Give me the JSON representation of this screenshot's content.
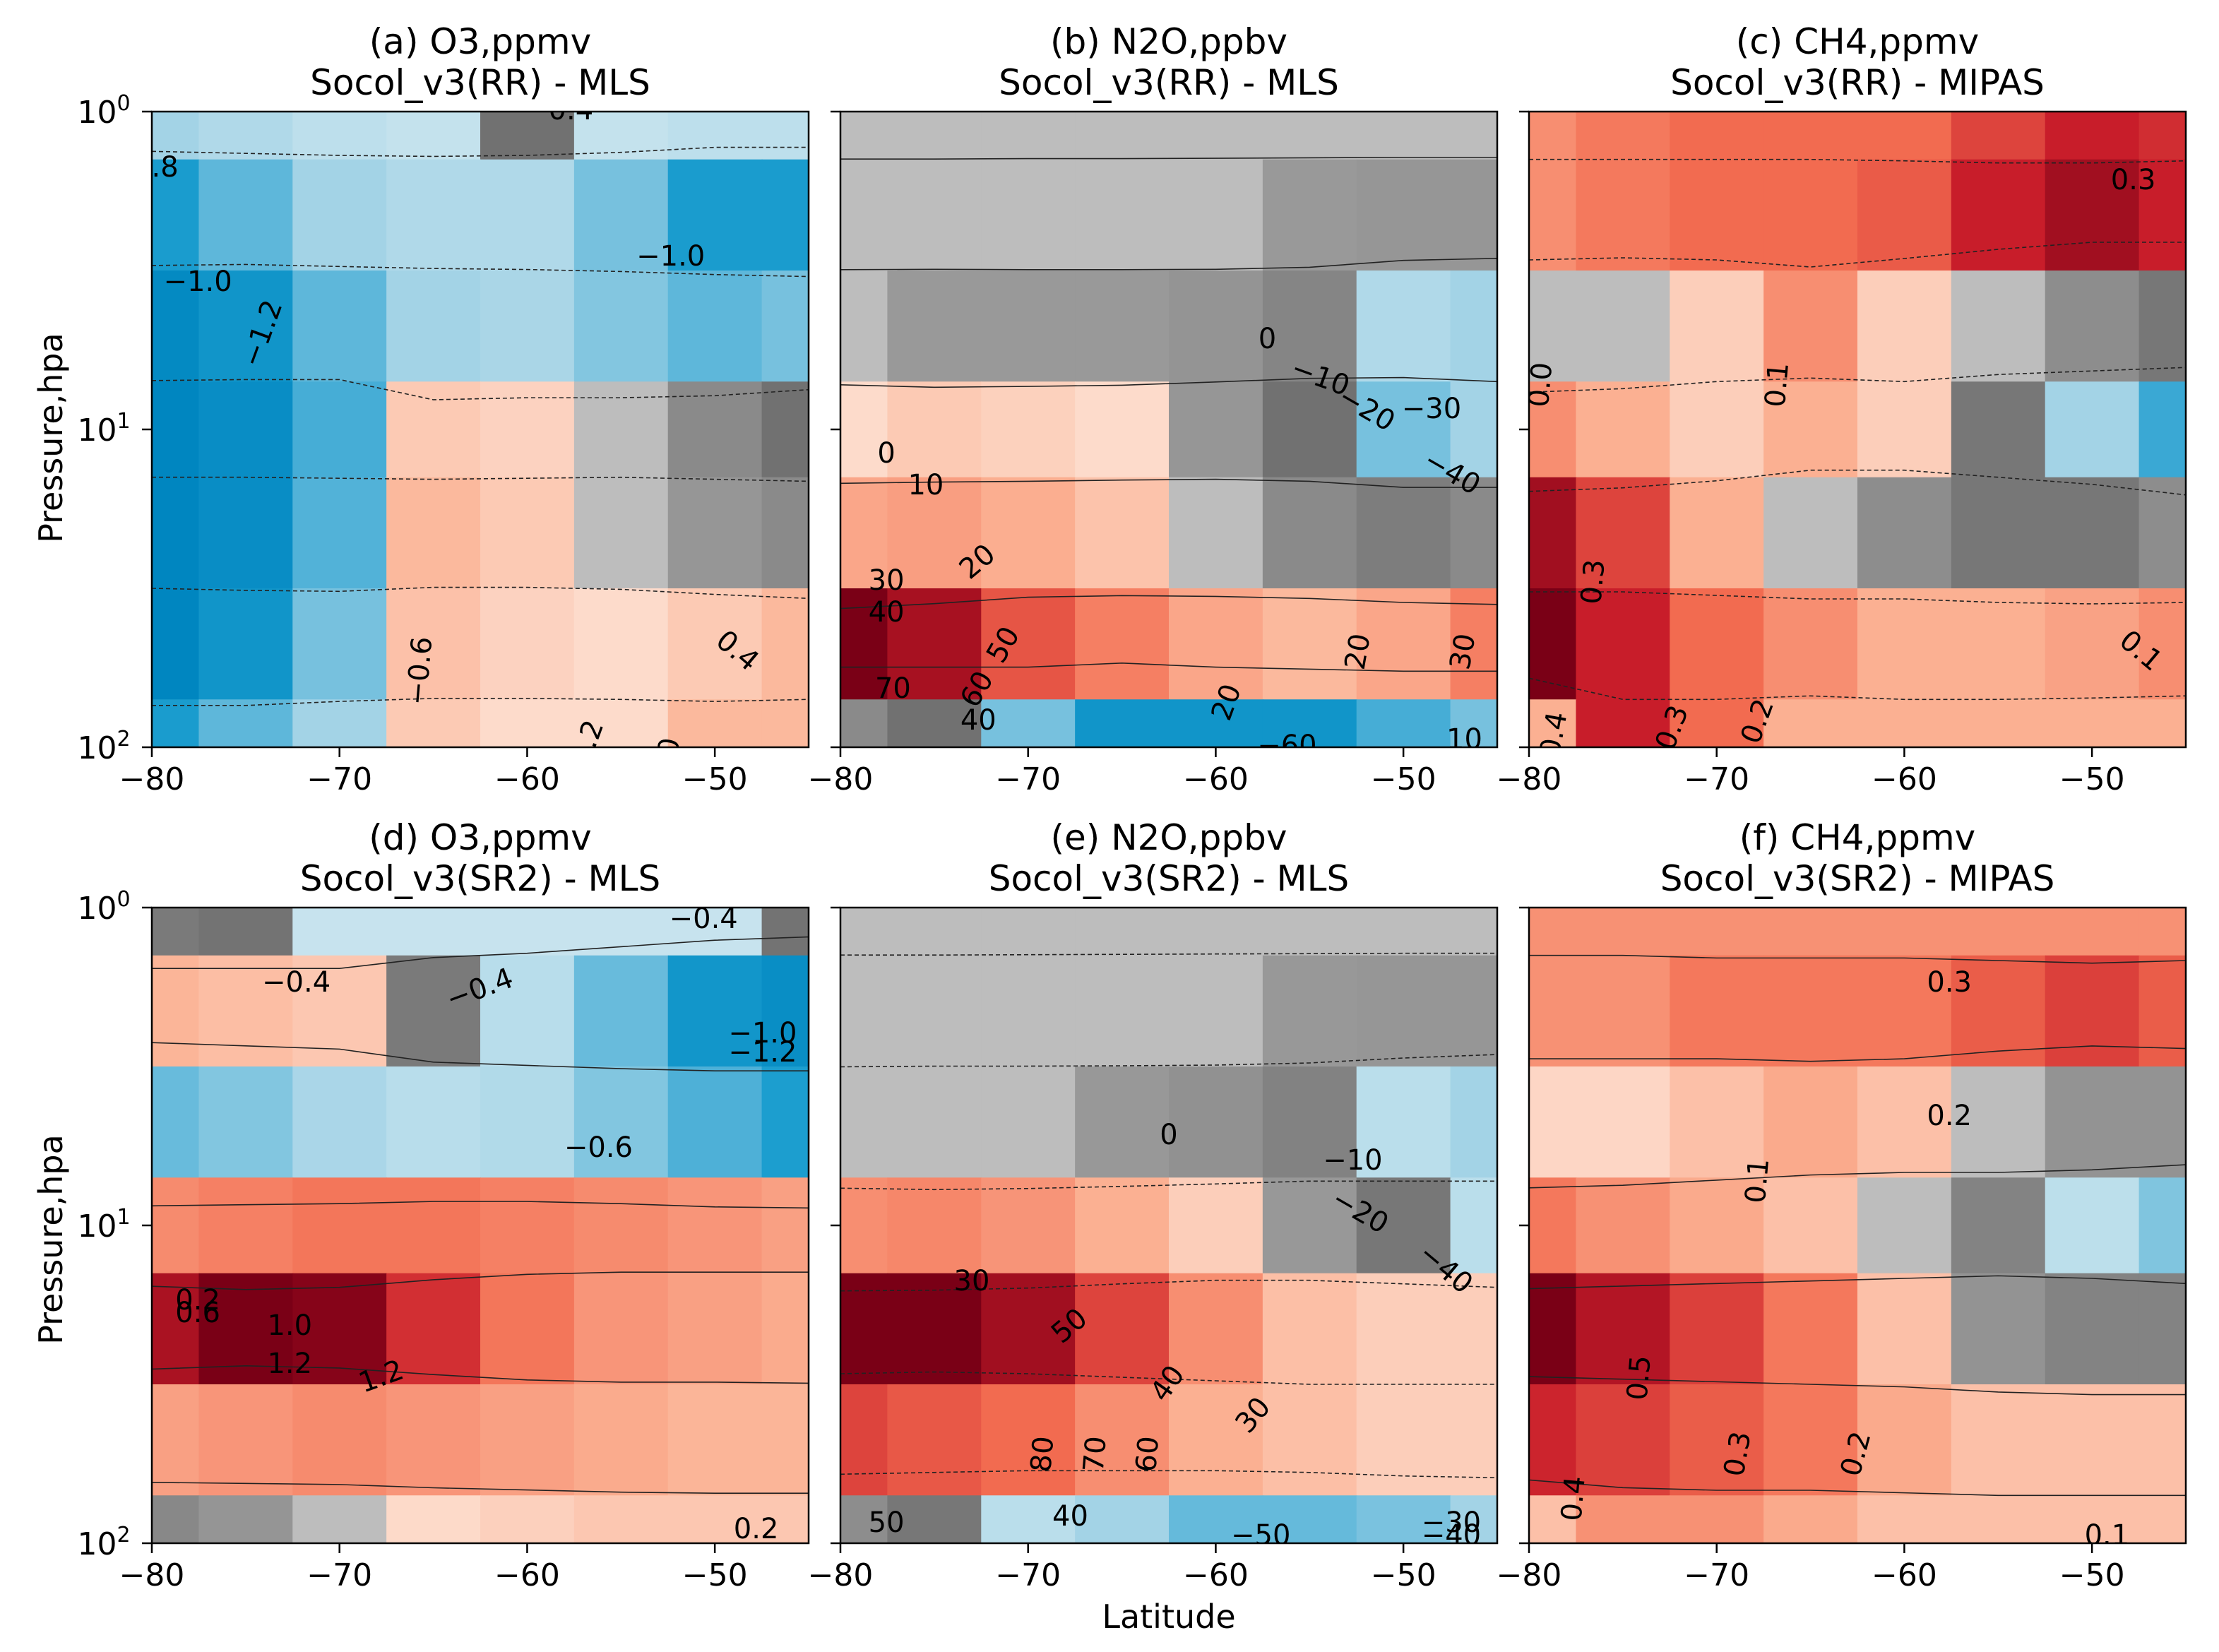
{
  "figure": {
    "xlabel": "Latitude",
    "ylabel": "Pressure,hpa"
  },
  "chart_data": [
    {
      "id": "a",
      "type": "heatmap",
      "title_line1": "(a) O3,ppmv",
      "title_line2": "Socol_v3(RR) - MLS",
      "xlim": [
        -80,
        -45
      ],
      "ylim": [
        100,
        1
      ],
      "yscale": "log",
      "xticks": [
        "−80",
        "−70",
        "−60",
        "−50"
      ],
      "yticks": [
        "10",
        "10",
        "10"
      ],
      "ytick_exp": [
        "0",
        "1",
        "2"
      ],
      "x": [
        -80,
        -75,
        -70,
        -65,
        -60,
        -55,
        -50,
        -45
      ],
      "y": [
        1,
        2,
        5,
        10,
        20,
        50,
        100
      ],
      "z": [
        [
          -0.7,
          -0.6,
          -0.5,
          -0.45,
          -0.4,
          -0.45,
          -0.5,
          -0.5
        ],
        [
          -1.1,
          -0.9,
          -0.7,
          -0.6,
          -0.6,
          -0.8,
          -1.1,
          -1.1
        ],
        [
          -1.35,
          -1.2,
          -0.9,
          -0.7,
          -0.65,
          -0.75,
          -0.9,
          -0.8
        ],
        [
          -1.4,
          -1.3,
          -1.0,
          0.2,
          0.15,
          0.05,
          -0.2,
          -0.4
        ],
        [
          -1.4,
          -1.3,
          -0.95,
          0.3,
          0.2,
          0.05,
          -0.1,
          -0.2
        ],
        [
          -1.4,
          -1.2,
          -0.8,
          0.25,
          0.15,
          0.1,
          0.2,
          0.3
        ],
        [
          -1.1,
          -0.9,
          -0.7,
          0.2,
          0.1,
          0.1,
          0.3,
          0.3
        ]
      ],
      "contour_labels": [
        "−0.4",
        ".8",
        "−1.0",
        "−1.0",
        "−1.2",
        "−0.6",
        "0.4",
        ".2",
        "0"
      ]
    },
    {
      "id": "b",
      "type": "heatmap",
      "title_line1": "(b) N2O,ppbv",
      "title_line2": "Socol_v3(RR) - MLS",
      "xlim": [
        -80,
        -45
      ],
      "ylim": [
        100,
        1
      ],
      "yscale": "log",
      "xticks": [
        "−80",
        "−70",
        "−60",
        "−50"
      ],
      "x": [
        -80,
        -75,
        -70,
        -65,
        -60,
        -55,
        -50,
        -45
      ],
      "y": [
        1,
        2,
        5,
        10,
        20,
        50,
        100
      ],
      "z": [
        [
          0,
          0,
          0,
          0,
          0,
          0,
          0,
          0
        ],
        [
          -1,
          -1,
          -2,
          -2,
          -3,
          -4,
          -5,
          -5
        ],
        [
          -3,
          -4,
          -4,
          -4,
          -6,
          -12,
          -30,
          -35
        ],
        [
          5,
          10,
          8,
          5,
          -5,
          -20,
          -40,
          -35
        ],
        [
          20,
          22,
          18,
          12,
          0,
          -10,
          -15,
          -10
        ],
        [
          70,
          60,
          40,
          30,
          20,
          15,
          20,
          30
        ],
        [
          -10,
          -20,
          -40,
          -60,
          -60,
          -60,
          -50,
          -40
        ]
      ],
      "contour_labels": [
        "0",
        "−10",
        "−20",
        "−30",
        "−40",
        "0",
        "10",
        "20",
        "30",
        "40",
        "50",
        "60",
        "70",
        "40",
        "20",
        "20",
        "30",
        "−60",
        "10"
      ]
    },
    {
      "id": "c",
      "type": "heatmap",
      "title_line1": "(c) CH4,ppmv",
      "title_line2": "Socol_v3(RR) - MIPAS",
      "xlim": [
        -80,
        -45
      ],
      "ylim": [
        100,
        1
      ],
      "yscale": "log",
      "xticks": [
        "−80",
        "−70",
        "−60",
        "−50"
      ],
      "x": [
        -80,
        -75,
        -70,
        -65,
        -60,
        -55,
        -50,
        -45
      ],
      "y": [
        1,
        2,
        5,
        10,
        20,
        50,
        100
      ],
      "z": [
        [
          0.15,
          0.18,
          0.2,
          0.2,
          0.2,
          0.25,
          0.3,
          0.28
        ],
        [
          0.15,
          0.18,
          0.2,
          0.2,
          0.22,
          0.3,
          0.35,
          0.3
        ],
        [
          0.0,
          0.0,
          0.05,
          0.15,
          0.05,
          0.0,
          -0.05,
          -0.1
        ],
        [
          0.15,
          0.1,
          0.05,
          0.1,
          0.05,
          -0.1,
          -0.2,
          -0.3
        ],
        [
          0.35,
          0.25,
          0.1,
          0.0,
          -0.05,
          -0.1,
          -0.1,
          -0.05
        ],
        [
          0.4,
          0.3,
          0.2,
          0.15,
          0.1,
          0.1,
          0.12,
          0.15
        ],
        [
          0.1,
          0.3,
          0.2,
          0.1,
          0.1,
          0.1,
          0.1,
          0.1
        ]
      ],
      "contour_labels": [
        "0.3",
        "0.0",
        "0.1",
        "0.3",
        "0.1",
        "0.2",
        "0.3",
        "0.4"
      ]
    },
    {
      "id": "d",
      "type": "heatmap",
      "title_line1": "(d) O3,ppmv",
      "title_line2": "Socol_v3(SR2) - MLS",
      "xlim": [
        -80,
        -45
      ],
      "ylim": [
        100,
        1
      ],
      "yscale": "log",
      "xticks": [
        "−80",
        "−70",
        "−60",
        "−50"
      ],
      "yticks": [
        "10",
        "10",
        "10"
      ],
      "ytick_exp": [
        "0",
        "1",
        "2"
      ],
      "x": [
        -80,
        -75,
        -70,
        -65,
        -60,
        -55,
        -50,
        -45
      ],
      "y": [
        1,
        2,
        5,
        10,
        20,
        50,
        100
      ],
      "z": [
        [
          -0.3,
          -0.35,
          -0.4,
          -0.4,
          -0.4,
          -0.4,
          -0.4,
          -0.35
        ],
        [
          0.3,
          0.25,
          0.2,
          -0.3,
          -0.5,
          -0.8,
          -1.1,
          -1.2
        ],
        [
          -0.8,
          -0.7,
          -0.6,
          -0.5,
          -0.55,
          -0.7,
          -0.9,
          -1.0
        ],
        [
          0.5,
          0.55,
          0.6,
          0.6,
          0.55,
          0.5,
          0.45,
          0.4
        ],
        [
          1.1,
          1.3,
          1.25,
          0.9,
          0.6,
          0.45,
          0.4,
          0.35
        ],
        [
          0.4,
          0.45,
          0.5,
          0.45,
          0.4,
          0.35,
          0.3,
          0.3
        ],
        [
          -0.2,
          -0.1,
          0.0,
          0.1,
          0.15,
          0.2,
          0.2,
          0.2
        ]
      ],
      "contour_labels": [
        "−0.4",
        "−0.4",
        "−0.4",
        "−1.0",
        "−1.2",
        "−0.6",
        "0.2",
        "0.6",
        "1.0",
        "1.2",
        "1.2",
        "0.2"
      ]
    },
    {
      "id": "e",
      "type": "heatmap",
      "title_line1": "(e) N2O,ppbv",
      "title_line2": "Socol_v3(SR2) - MLS",
      "xlim": [
        -80,
        -45
      ],
      "ylim": [
        100,
        1
      ],
      "yscale": "log",
      "xticks": [
        "−80",
        "−70",
        "−60",
        "−50"
      ],
      "x": [
        -80,
        -75,
        -70,
        -65,
        -60,
        -55,
        -50,
        -45
      ],
      "y": [
        1,
        2,
        5,
        10,
        20,
        50,
        100
      ],
      "z": [
        [
          0,
          0,
          0,
          0,
          0,
          0,
          0,
          0
        ],
        [
          -1,
          -1,
          -2,
          -3,
          -4,
          -5,
          -6,
          -6
        ],
        [
          0,
          -2,
          -3,
          -5,
          -8,
          -15,
          -30,
          -40
        ],
        [
          30,
          32,
          28,
          20,
          10,
          -5,
          -20,
          -30
        ],
        [
          80,
          80,
          70,
          50,
          30,
          15,
          10,
          10
        ],
        [
          50,
          45,
          40,
          30,
          20,
          15,
          10,
          10
        ],
        [
          -10,
          -20,
          -30,
          -40,
          -50,
          -50,
          -45,
          -40
        ]
      ],
      "contour_labels": [
        "0",
        "−10",
        "−20",
        "−40",
        "30",
        "50",
        "40",
        "30",
        "80",
        "70",
        "60",
        "50",
        "40",
        "−50",
        "−40",
        "−30"
      ]
    },
    {
      "id": "f",
      "type": "heatmap",
      "title_line1": "(f) CH4,ppmv",
      "title_line2": "Socol_v3(SR2) - MIPAS",
      "xlim": [
        -80,
        -45
      ],
      "ylim": [
        100,
        1
      ],
      "yscale": "log",
      "xticks": [
        "−80",
        "−70",
        "−60",
        "−50"
      ],
      "x": [
        -80,
        -75,
        -70,
        -65,
        -60,
        -55,
        -50,
        -45
      ],
      "y": [
        1,
        2,
        5,
        10,
        20,
        50,
        100
      ],
      "z": [
        [
          0.2,
          0.2,
          0.2,
          0.2,
          0.2,
          0.2,
          0.2,
          0.2
        ],
        [
          0.2,
          0.2,
          0.25,
          0.25,
          0.25,
          0.3,
          0.35,
          0.3
        ],
        [
          0.05,
          0.05,
          0.1,
          0.15,
          0.1,
          0.0,
          -0.05,
          -0.05
        ],
        [
          0.25,
          0.2,
          0.15,
          0.1,
          0.0,
          -0.1,
          -0.2,
          -0.3
        ],
        [
          0.55,
          0.45,
          0.35,
          0.25,
          0.1,
          -0.05,
          -0.1,
          -0.1
        ],
        [
          0.4,
          0.35,
          0.3,
          0.25,
          0.15,
          0.1,
          0.1,
          0.1
        ],
        [
          0.1,
          0.2,
          0.2,
          0.15,
          0.1,
          0.1,
          0.1,
          0.1
        ]
      ],
      "contour_labels": [
        "0.3",
        "0.2",
        "0.1",
        "0.5",
        "0.3",
        "0.2",
        "0.4",
        "0.1"
      ]
    }
  ]
}
